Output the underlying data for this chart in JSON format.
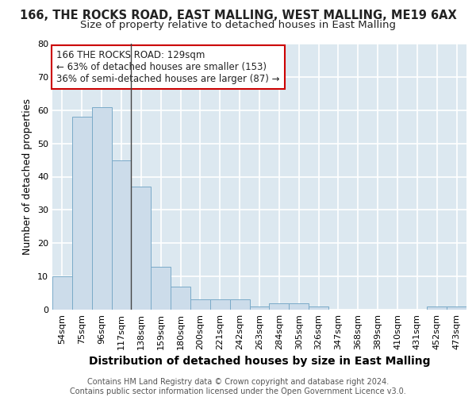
{
  "title1": "166, THE ROCKS ROAD, EAST MALLING, WEST MALLING, ME19 6AX",
  "title2": "Size of property relative to detached houses in East Malling",
  "xlabel": "Distribution of detached houses by size in East Malling",
  "ylabel": "Number of detached properties",
  "categories": [
    "54sqm",
    "75sqm",
    "96sqm",
    "117sqm",
    "138sqm",
    "159sqm",
    "180sqm",
    "200sqm",
    "221sqm",
    "242sqm",
    "263sqm",
    "284sqm",
    "305sqm",
    "326sqm",
    "347sqm",
    "368sqm",
    "389sqm",
    "410sqm",
    "431sqm",
    "452sqm",
    "473sqm"
  ],
  "values": [
    10,
    58,
    61,
    45,
    37,
    13,
    7,
    3,
    3,
    3,
    1,
    2,
    2,
    1,
    0,
    0,
    0,
    0,
    0,
    1,
    1
  ],
  "bar_color": "#ccdcea",
  "bar_edge_color": "#7aaac8",
  "highlight_line_color": "#444444",
  "highlight_index": 3.5,
  "annotation_text": "166 THE ROCKS ROAD: 129sqm\n← 63% of detached houses are smaller (153)\n36% of semi-detached houses are larger (87) →",
  "annotation_box_color": "#ffffff",
  "annotation_box_edge_color": "#cc0000",
  "ylim": [
    0,
    80
  ],
  "yticks": [
    0,
    10,
    20,
    30,
    40,
    50,
    60,
    70,
    80
  ],
  "background_color": "#dce8f0",
  "grid_color": "#ffffff",
  "footer": "Contains HM Land Registry data © Crown copyright and database right 2024.\nContains public sector information licensed under the Open Government Licence v3.0.",
  "title1_fontsize": 10.5,
  "title2_fontsize": 9.5,
  "xlabel_fontsize": 10,
  "ylabel_fontsize": 9,
  "tick_fontsize": 8,
  "annotation_fontsize": 8.5,
  "footer_fontsize": 7
}
